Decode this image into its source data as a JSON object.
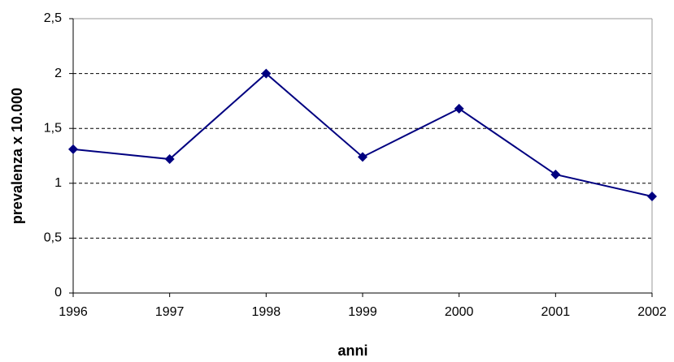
{
  "chart_data": {
    "type": "line",
    "x_label": "anni",
    "y_label": "prevalenza x 10.000",
    "categories": [
      "1996",
      "1997",
      "1998",
      "1999",
      "2000",
      "2001",
      "2002"
    ],
    "series": [
      {
        "color": "#000080",
        "values": [
          1.31,
          1.22,
          2.0,
          1.24,
          1.68,
          1.08,
          0.88
        ]
      }
    ],
    "ylim": [
      0,
      2.5
    ],
    "yticks": [
      0,
      {
        "value": 0.5,
        "label": "0,5"
      },
      1,
      {
        "value": 1.5,
        "label": "1,5"
      },
      2,
      {
        "value": 2.5,
        "label": "2,5"
      }
    ],
    "grid": true
  }
}
